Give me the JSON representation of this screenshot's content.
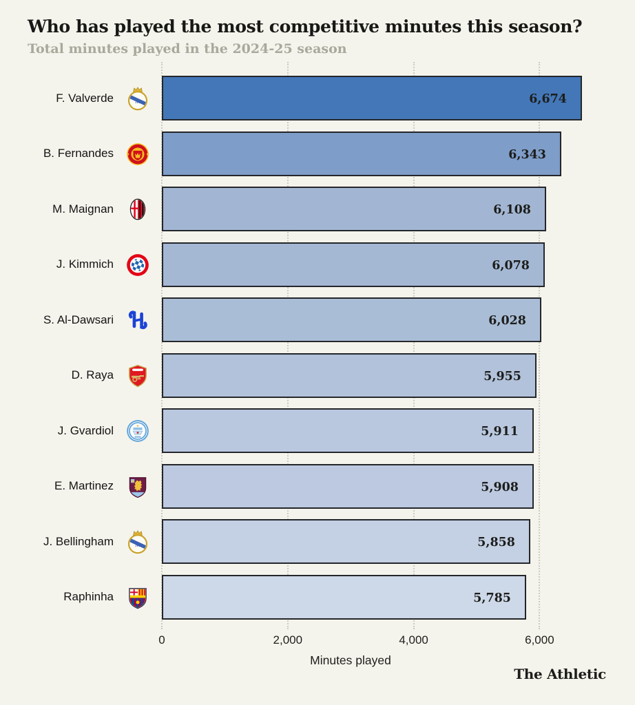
{
  "header": {
    "title": "Who has played the most competitive minutes this season?",
    "subtitle": "Total minutes played in the 2024-25 season"
  },
  "credit": "The Athletic",
  "chart_data": {
    "type": "bar",
    "orientation": "horizontal",
    "title": "Who has played the most competitive minutes this season?",
    "subtitle": "Total minutes played in the 2024-25 season",
    "xlabel": "Minutes played",
    "ylabel": "",
    "xlim": [
      0,
      7300
    ],
    "x_ticks": [
      0,
      2000,
      4000,
      6000
    ],
    "x_tick_labels": [
      "0",
      "2,000",
      "4,000",
      "6,000"
    ],
    "grid": "dotted-vertical-gridlines",
    "legend": "none",
    "bar_border_color": "#24262a",
    "players": [
      {
        "name": "F. Valverde",
        "club": "Real Madrid",
        "crest": "real-madrid",
        "minutes": 6674,
        "label": "6,674",
        "bar_color": "#4377b8"
      },
      {
        "name": "B. Fernandes",
        "club": "Manchester United",
        "crest": "man-united",
        "minutes": 6343,
        "label": "6,343",
        "bar_color": "#7e9dc9"
      },
      {
        "name": "M. Maignan",
        "club": "AC Milan",
        "crest": "ac-milan",
        "minutes": 6108,
        "label": "6,108",
        "bar_color": "#a2b6d3"
      },
      {
        "name": "J. Kimmich",
        "club": "Bayern Munich",
        "crest": "bayern",
        "minutes": 6078,
        "label": "6,078",
        "bar_color": "#a4b8d4"
      },
      {
        "name": "S. Al-Dawsari",
        "club": "Al Hilal",
        "crest": "al-hilal",
        "minutes": 6028,
        "label": "6,028",
        "bar_color": "#aabdd7"
      },
      {
        "name": "D. Raya",
        "club": "Arsenal",
        "crest": "arsenal",
        "minutes": 5955,
        "label": "5,955",
        "bar_color": "#b1c2da"
      },
      {
        "name": "J. Gvardiol",
        "club": "Manchester City",
        "crest": "man-city",
        "minutes": 5911,
        "label": "5,911",
        "bar_color": "#b9c8df"
      },
      {
        "name": "E. Martinez",
        "club": "Aston Villa",
        "crest": "aston-villa",
        "minutes": 5908,
        "label": "5,908",
        "bar_color": "#bcc9e0"
      },
      {
        "name": "J. Bellingham",
        "club": "Real Madrid",
        "crest": "real-madrid",
        "minutes": 5858,
        "label": "5,858",
        "bar_color": "#c4d0e4"
      },
      {
        "name": "Raphinha",
        "club": "Barcelona",
        "crest": "barcelona",
        "minutes": 5785,
        "label": "5,785",
        "bar_color": "#cdd8e8"
      }
    ]
  }
}
